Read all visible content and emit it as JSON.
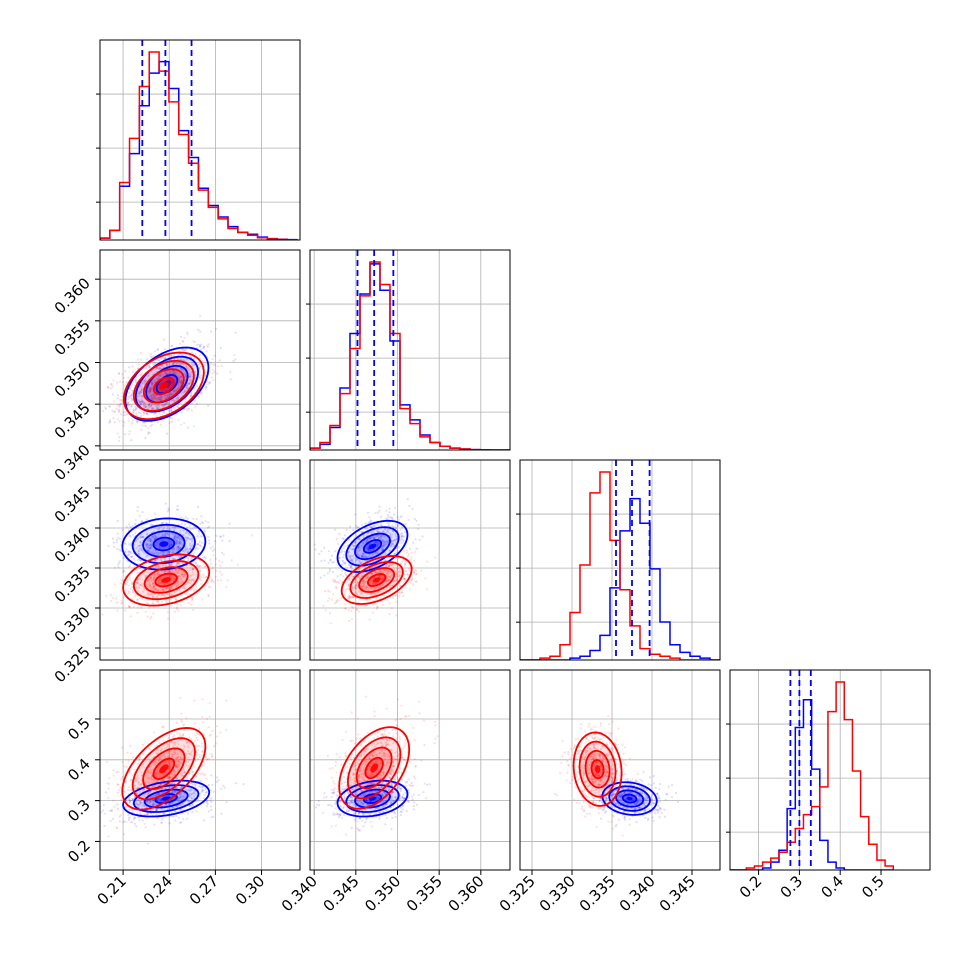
{
  "chart_data": {
    "type": "corner",
    "title": "",
    "grid": true,
    "colors": {
      "series_a": "#0000ff",
      "series_b": "#ff0000",
      "axes": "#000000",
      "grid": "#b0b0b0"
    },
    "params": [
      {
        "range": [
          0.195,
          0.325
        ],
        "ticks": [
          0.21,
          0.24,
          0.27,
          0.3
        ],
        "tick_labels": [
          "0.21",
          "0.24",
          "0.27",
          "0.30"
        ]
      },
      {
        "range": [
          0.3395,
          0.3635
        ],
        "ticks": [
          0.34,
          0.345,
          0.35,
          0.355,
          0.36
        ],
        "tick_labels": [
          "0.340",
          "0.345",
          "0.350",
          "0.355",
          "0.360"
        ]
      },
      {
        "range": [
          0.3235,
          0.3485
        ],
        "ticks": [
          0.325,
          0.33,
          0.335,
          0.34,
          0.345
        ],
        "tick_labels": [
          "0.325",
          "0.330",
          "0.335",
          "0.340",
          "0.345"
        ]
      },
      {
        "range": [
          0.13,
          0.62
        ],
        "ticks": [
          0.2,
          0.3,
          0.4,
          0.5
        ],
        "tick_labels": [
          "0.2",
          "0.3",
          "0.4",
          "0.5"
        ]
      }
    ],
    "quantile_lines": [
      [
        0.2225,
        0.2375,
        0.2545
      ],
      [
        0.3452,
        0.3472,
        0.3495
      ],
      [
        0.3355,
        0.3375,
        0.3397
      ],
      [
        0.278,
        0.3,
        0.328
      ]
    ],
    "histograms": [
      {
        "edges": [
          0.195,
          0.2014,
          0.2078,
          0.2142,
          0.2206,
          0.227,
          0.2334,
          0.2398,
          0.2462,
          0.2526,
          0.259,
          0.2654,
          0.2718,
          0.2782,
          0.2846,
          0.291,
          0.2974,
          0.3038,
          0.3102,
          0.3166,
          0.323
        ],
        "series": [
          {
            "name": "",
            "counts": [
              0.01,
              0.05,
              0.28,
              0.45,
              0.7,
              0.87,
              0.93,
              0.79,
              0.57,
              0.43,
              0.27,
              0.18,
              0.12,
              0.07,
              0.04,
              0.03,
              0.015,
              0.007,
              0.004,
              0.002
            ]
          },
          {
            "name": "",
            "counts": [
              0.01,
              0.05,
              0.3,
              0.53,
              0.8,
              0.98,
              0.88,
              0.72,
              0.55,
              0.4,
              0.26,
              0.17,
              0.11,
              0.06,
              0.04,
              0.025,
              0.012,
              0.006,
              0.003,
              0.001
            ]
          }
        ]
      },
      {
        "edges": [
          0.3395,
          0.3407,
          0.3419,
          0.3431,
          0.3443,
          0.3455,
          0.3467,
          0.3479,
          0.3491,
          0.3503,
          0.3515,
          0.3527,
          0.3539,
          0.3551,
          0.3563,
          0.3575,
          0.3587,
          0.3599,
          0.3611,
          0.3623,
          0.3635
        ],
        "series": [
          {
            "name": "",
            "counts": [
              0.01,
              0.03,
              0.12,
              0.33,
              0.62,
              0.83,
              0.99,
              0.85,
              0.58,
              0.24,
              0.16,
              0.08,
              0.04,
              0.02,
              0.01,
              0.005,
              0.002,
              0.001,
              0.0,
              0.0
            ]
          },
          {
            "name": "",
            "counts": [
              0.01,
              0.04,
              0.13,
              0.3,
              0.54,
              0.82,
              1.0,
              0.88,
              0.62,
              0.22,
              0.14,
              0.07,
              0.04,
              0.02,
              0.01,
              0.005,
              0.002,
              0.001,
              0.0,
              0.0
            ]
          }
        ]
      },
      {
        "edges": [
          0.3235,
          0.32475,
          0.326,
          0.32725,
          0.3285,
          0.32975,
          0.331,
          0.33225,
          0.3335,
          0.33475,
          0.336,
          0.33725,
          0.3385,
          0.33975,
          0.341,
          0.34225,
          0.3435,
          0.34475,
          0.346,
          0.34725,
          0.3485
        ],
        "series": [
          {
            "name": "",
            "counts": [
              0.0,
              0.0,
              0.0,
              0.0,
              0.0,
              0.01,
              0.02,
              0.05,
              0.13,
              0.38,
              0.68,
              0.85,
              0.72,
              0.48,
              0.2,
              0.08,
              0.04,
              0.02,
              0.01,
              0.0
            ]
          },
          {
            "name": "",
            "counts": [
              0.0,
              0.0,
              0.01,
              0.02,
              0.08,
              0.25,
              0.5,
              0.88,
              0.99,
              0.63,
              0.37,
              0.18,
              0.06,
              0.03,
              0.02,
              0.01,
              0.0,
              0.0,
              0.0,
              0.0
            ]
          }
        ]
      },
      {
        "edges": [
          0.13,
          0.15,
          0.17,
          0.19,
          0.21,
          0.23,
          0.25,
          0.27,
          0.29,
          0.31,
          0.33,
          0.35,
          0.37,
          0.39,
          0.41,
          0.43,
          0.45,
          0.47,
          0.49,
          0.51,
          0.53
        ],
        "series": [
          {
            "name": "",
            "counts": [
              0.0,
              0.0,
              0.0,
              0.0,
              0.01,
              0.04,
              0.1,
              0.31,
              0.72,
              0.86,
              0.51,
              0.15,
              0.04,
              0.01,
              0.0,
              0.0,
              0.0,
              0.0,
              0.0,
              0.0
            ]
          },
          {
            "name": "",
            "counts": [
              0.0,
              0.0,
              0.01,
              0.02,
              0.04,
              0.06,
              0.09,
              0.14,
              0.21,
              0.28,
              0.32,
              0.42,
              0.8,
              0.95,
              0.76,
              0.5,
              0.27,
              0.13,
              0.05,
              0.02
            ]
          }
        ]
      }
    ],
    "joint": [
      {
        "row": 1,
        "col": 0,
        "series": [
          {
            "mean": [
              0.2385,
              0.3474
            ],
            "sd": [
              0.0135,
              0.0022
            ],
            "rho": 0.45
          },
          {
            "mean": [
              0.2365,
              0.3472
            ],
            "sd": [
              0.013,
              0.002
            ],
            "rho": 0.4
          }
        ]
      },
      {
        "row": 2,
        "col": 0,
        "series": [
          {
            "mean": [
              0.2365,
              0.338
            ],
            "sd": [
              0.0135,
              0.0016
            ],
            "rho": 0.1
          },
          {
            "mean": [
              0.238,
              0.3335
            ],
            "sd": [
              0.014,
              0.0016
            ],
            "rho": 0.3
          }
        ]
      },
      {
        "row": 2,
        "col": 1,
        "series": [
          {
            "mean": [
              0.347,
              0.3377
            ],
            "sd": [
              0.0021,
              0.0016
            ],
            "rho": 0.45
          },
          {
            "mean": [
              0.3475,
              0.3335
            ],
            "sd": [
              0.0021,
              0.0015
            ],
            "rho": 0.45
          }
        ]
      },
      {
        "row": 3,
        "col": 0,
        "series": [
          {
            "mean": [
              0.238,
              0.305
            ],
            "sd": [
              0.014,
              0.022
            ],
            "rho": 0.35
          },
          {
            "mean": [
              0.2365,
              0.378
            ],
            "sd": [
              0.0135,
              0.05
            ],
            "rho": 0.55
          }
        ]
      },
      {
        "row": 3,
        "col": 1,
        "series": [
          {
            "mean": [
              0.347,
              0.305
            ],
            "sd": [
              0.0021,
              0.022
            ],
            "rho": 0.25
          },
          {
            "mean": [
              0.3472,
              0.38
            ],
            "sd": [
              0.0021,
              0.05
            ],
            "rho": 0.45
          }
        ]
      },
      {
        "row": 3,
        "col": 2,
        "series": [
          {
            "mean": [
              0.3372,
              0.305
            ],
            "sd": [
              0.0017,
              0.02
            ],
            "rho": -0.15
          },
          {
            "mean": [
              0.3332,
              0.377
            ],
            "sd": [
              0.0015,
              0.045
            ],
            "rho": -0.1
          }
        ]
      }
    ]
  }
}
